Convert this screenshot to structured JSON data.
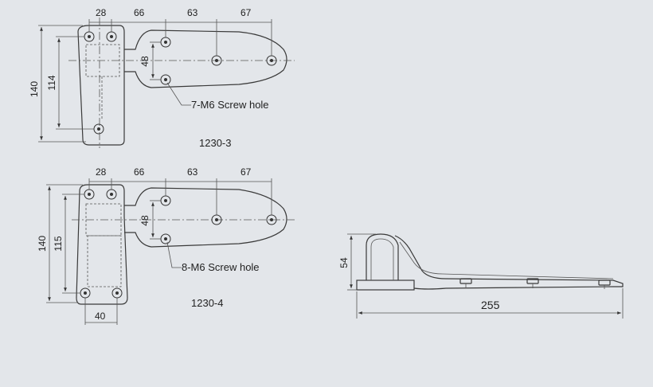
{
  "diagram": {
    "top_drawing": {
      "model": "1230-3",
      "callout": "7-M6  Screw hole",
      "dims_top": [
        "28",
        "66",
        "63",
        "67"
      ],
      "dim_height_outer": "140",
      "dim_height_inner": "114",
      "dim_hole_spacing": "48"
    },
    "bottom_drawing": {
      "model": "1230-4",
      "callout": "8-M6  Screw hole",
      "dims_top": [
        "28",
        "66",
        "63",
        "67"
      ],
      "dim_height_outer": "140",
      "dim_height_inner": "115",
      "dim_hole_spacing": "48",
      "dim_bottom_width": "40"
    },
    "side_view": {
      "dim_height": "54",
      "dim_length": "255"
    }
  }
}
